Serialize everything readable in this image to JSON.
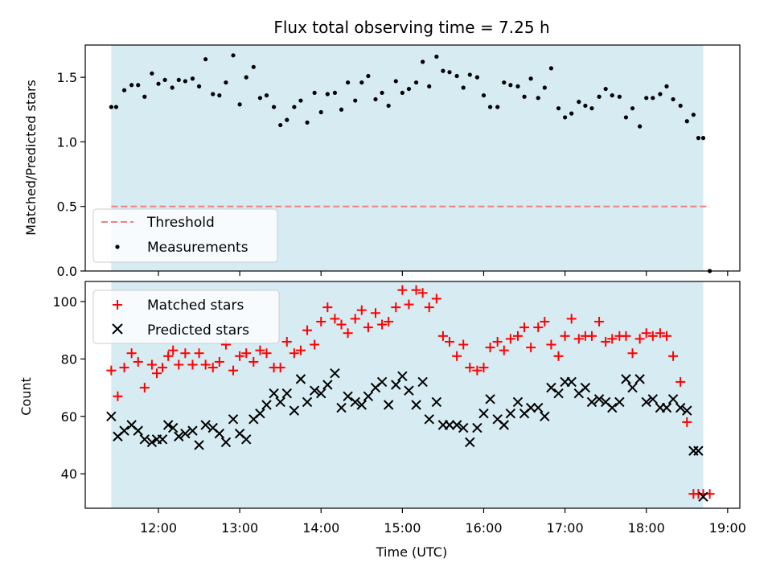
{
  "title": "Flux total observing time = 7.25 h",
  "chart_data": [
    {
      "type": "scatter",
      "title": "Flux total observing time = 7.25 h",
      "xlabel": "",
      "ylabel": "Matched/Predicted stars",
      "xlim": [
        11.1,
        19.15
      ],
      "ylim": [
        0,
        1.75
      ],
      "yticks": [
        0.0,
        0.5,
        1.0,
        1.5
      ],
      "yticklabels": [
        "0.0",
        "0.5",
        "1.0",
        "1.5"
      ],
      "shaded_span": [
        11.42,
        18.7
      ],
      "shade_color": "#add8e6",
      "legend": {
        "placement": "lower-left",
        "entries": [
          "Threshold",
          "Measurements"
        ]
      },
      "threshold": {
        "name": "Threshold",
        "y": 0.5,
        "x": [
          11.42,
          18.78
        ],
        "color": "#f08080"
      },
      "series": [
        {
          "name": "Measurements",
          "marker": "dot",
          "color": "#000000",
          "x": [
            11.42,
            11.48,
            11.58,
            11.67,
            11.75,
            11.83,
            11.92,
            12.0,
            12.08,
            12.17,
            12.25,
            12.33,
            12.42,
            12.5,
            12.58,
            12.67,
            12.75,
            12.83,
            12.92,
            13.0,
            13.08,
            13.17,
            13.25,
            13.33,
            13.42,
            13.5,
            13.58,
            13.67,
            13.75,
            13.83,
            13.92,
            14.0,
            14.08,
            14.17,
            14.25,
            14.33,
            14.42,
            14.5,
            14.58,
            14.67,
            14.75,
            14.83,
            14.92,
            15.0,
            15.08,
            15.17,
            15.25,
            15.33,
            15.42,
            15.5,
            15.58,
            15.67,
            15.75,
            15.83,
            15.92,
            16.0,
            16.08,
            16.17,
            16.25,
            16.33,
            16.42,
            16.5,
            16.58,
            16.67,
            16.75,
            16.83,
            16.92,
            17.0,
            17.08,
            17.17,
            17.25,
            17.33,
            17.42,
            17.5,
            17.58,
            17.67,
            17.75,
            17.83,
            17.92,
            18.0,
            18.08,
            18.17,
            18.25,
            18.33,
            18.42,
            18.5,
            18.58,
            18.64,
            18.7,
            18.78
          ],
          "y": [
            1.27,
            1.27,
            1.4,
            1.44,
            1.44,
            1.35,
            1.53,
            1.45,
            1.48,
            1.42,
            1.48,
            1.47,
            1.49,
            1.43,
            1.64,
            1.37,
            1.36,
            1.46,
            1.67,
            1.29,
            1.5,
            1.58,
            1.34,
            1.36,
            1.27,
            1.13,
            1.17,
            1.27,
            1.32,
            1.15,
            1.38,
            1.23,
            1.37,
            1.38,
            1.25,
            1.46,
            1.32,
            1.46,
            1.51,
            1.33,
            1.38,
            1.28,
            1.47,
            1.38,
            1.41,
            1.46,
            1.62,
            1.43,
            1.66,
            1.55,
            1.54,
            1.51,
            1.42,
            1.52,
            1.5,
            1.36,
            1.27,
            1.27,
            1.46,
            1.44,
            1.43,
            1.35,
            1.49,
            1.34,
            1.42,
            1.57,
            1.26,
            1.19,
            1.22,
            1.31,
            1.28,
            1.26,
            1.35,
            1.41,
            1.36,
            1.35,
            1.19,
            1.26,
            1.12,
            1.34,
            1.34,
            1.37,
            1.43,
            1.33,
            1.28,
            1.16,
            1.21,
            1.03,
            1.03,
            0.0
          ]
        }
      ]
    },
    {
      "type": "scatter",
      "title": "",
      "xlabel": "Time (UTC)",
      "ylabel": "Count",
      "xlim": [
        11.1,
        19.15
      ],
      "ylim": [
        28,
        107
      ],
      "xticks": [
        12,
        13,
        14,
        15,
        16,
        17,
        18,
        19
      ],
      "xticklabels": [
        "12:00",
        "13:00",
        "14:00",
        "15:00",
        "16:00",
        "17:00",
        "18:00",
        "19:00"
      ],
      "yticks": [
        40,
        60,
        80,
        100
      ],
      "yticklabels": [
        "40",
        "60",
        "80",
        "100"
      ],
      "shaded_span": [
        11.42,
        18.7
      ],
      "shade_color": "#add8e6",
      "legend": {
        "placement": "upper-left",
        "entries": [
          "Matched stars",
          "Predicted stars"
        ]
      },
      "series": [
        {
          "name": "Matched stars",
          "marker": "plus",
          "color": "#ff0000",
          "x": [
            11.42,
            11.5,
            11.58,
            11.67,
            11.75,
            11.83,
            11.92,
            11.98,
            12.05,
            12.12,
            12.18,
            12.25,
            12.33,
            12.42,
            12.5,
            12.58,
            12.67,
            12.75,
            12.83,
            12.92,
            13.0,
            13.08,
            13.17,
            13.25,
            13.33,
            13.42,
            13.5,
            13.58,
            13.67,
            13.75,
            13.83,
            13.92,
            14.0,
            14.08,
            14.17,
            14.25,
            14.33,
            14.42,
            14.5,
            14.58,
            14.67,
            14.75,
            14.83,
            14.92,
            15.0,
            15.08,
            15.17,
            15.25,
            15.33,
            15.42,
            15.5,
            15.58,
            15.67,
            15.75,
            15.83,
            15.92,
            16.0,
            16.08,
            16.17,
            16.25,
            16.33,
            16.42,
            16.5,
            16.58,
            16.67,
            16.75,
            16.83,
            16.92,
            17.0,
            17.08,
            17.17,
            17.25,
            17.33,
            17.42,
            17.5,
            17.58,
            17.67,
            17.75,
            17.83,
            17.92,
            18.0,
            18.08,
            18.17,
            18.25,
            18.33,
            18.42,
            18.5,
            18.58,
            18.64,
            18.7,
            18.78
          ],
          "y": [
            76,
            67,
            77,
            82,
            79,
            70,
            78,
            75,
            77,
            81,
            83,
            78,
            82,
            78,
            82,
            78,
            77,
            79,
            85,
            76,
            81,
            82,
            79,
            83,
            82,
            77,
            77,
            86,
            82,
            83,
            90,
            85,
            93,
            98,
            94,
            92,
            89,
            94,
            97,
            91,
            96,
            92,
            93,
            98,
            104,
            99,
            104,
            103,
            98,
            101,
            88,
            86,
            81,
            85,
            77,
            76,
            77,
            84,
            86,
            83,
            87,
            88,
            91,
            84,
            91,
            93,
            85,
            81,
            88,
            94,
            87,
            88,
            88,
            93,
            86,
            87,
            88,
            88,
            82,
            87,
            89,
            88,
            89,
            88,
            81,
            72,
            58,
            33,
            33,
            33,
            33
          ],
          "note_points": 91
        },
        {
          "name": "Predicted stars",
          "marker": "x",
          "color": "#000000",
          "x": [
            11.42,
            11.5,
            11.58,
            11.67,
            11.75,
            11.83,
            11.92,
            11.98,
            12.05,
            12.12,
            12.18,
            12.25,
            12.33,
            12.42,
            12.5,
            12.58,
            12.67,
            12.75,
            12.83,
            12.92,
            13.0,
            13.08,
            13.17,
            13.25,
            13.33,
            13.42,
            13.5,
            13.58,
            13.67,
            13.75,
            13.83,
            13.92,
            14.0,
            14.08,
            14.17,
            14.25,
            14.33,
            14.42,
            14.5,
            14.58,
            14.67,
            14.75,
            14.83,
            14.92,
            15.0,
            15.08,
            15.17,
            15.25,
            15.33,
            15.42,
            15.5,
            15.58,
            15.67,
            15.75,
            15.83,
            15.92,
            16.0,
            16.08,
            16.17,
            16.25,
            16.33,
            16.42,
            16.5,
            16.58,
            16.67,
            16.75,
            16.83,
            16.92,
            17.0,
            17.08,
            17.17,
            17.25,
            17.33,
            17.42,
            17.5,
            17.58,
            17.67,
            17.75,
            17.83,
            17.92,
            18.0,
            18.08,
            18.17,
            18.25,
            18.33,
            18.42,
            18.5,
            18.58,
            18.64,
            18.7
          ],
          "y": [
            60,
            53,
            55,
            57,
            55,
            52,
            51,
            52,
            52,
            57,
            56,
            53,
            54,
            55,
            50,
            57,
            56,
            54,
            51,
            59,
            54,
            52,
            59,
            61,
            64,
            68,
            65,
            68,
            62,
            73,
            65,
            69,
            68,
            71,
            75,
            63,
            67,
            65,
            64,
            67,
            70,
            72,
            64,
            71,
            74,
            69,
            64,
            72,
            59,
            65,
            57,
            57,
            57,
            56,
            51,
            56,
            61,
            66,
            59,
            57,
            61,
            65,
            61,
            63,
            63,
            60,
            70,
            68,
            72,
            72,
            68,
            70,
            65,
            66,
            65,
            63,
            65,
            73,
            70,
            73,
            65,
            66,
            63,
            63,
            66,
            63,
            62,
            48,
            48,
            32
          ]
        }
      ]
    }
  ]
}
